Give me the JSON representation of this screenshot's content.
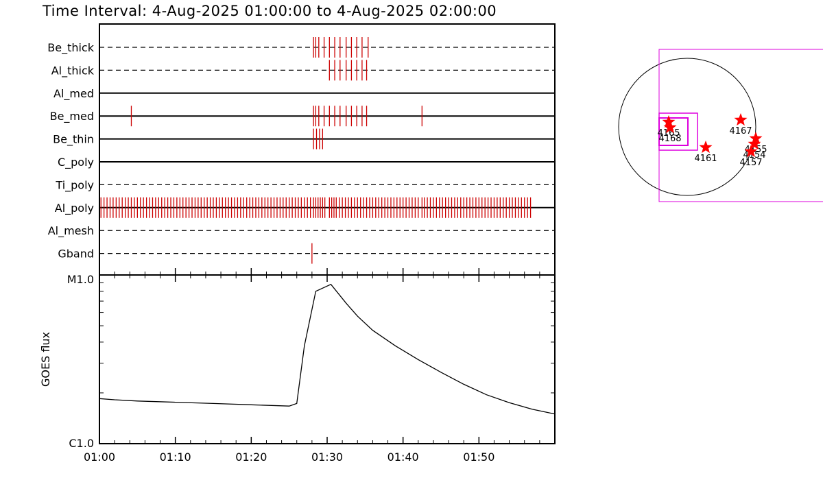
{
  "title": "Time Interval:  4-Aug-2025 01:00:00 to  4-Aug-2025 02:00:00",
  "colors": {
    "event": "#cc0000",
    "box": "#dd00dd",
    "star": "#ff0000",
    "line": "#000000"
  },
  "chart_data": [
    {
      "type": "timeline",
      "x_range_minutes": [
        0,
        60
      ],
      "filters": [
        {
          "name": "Be_thick",
          "line_style": "dashed",
          "events": [
            28.2,
            28.5,
            28.9,
            29.6,
            30.3,
            31.0,
            31.7,
            32.5,
            33.2,
            33.9,
            34.6,
            35.4
          ]
        },
        {
          "name": "Al_thick",
          "line_style": "dashed",
          "events": [
            30.3,
            31.0,
            31.7,
            32.5,
            33.2,
            33.9,
            34.6,
            35.2
          ]
        },
        {
          "name": "Al_med",
          "line_style": "solid",
          "events": []
        },
        {
          "name": "Be_med",
          "line_style": "solid",
          "events": [
            4.2,
            28.2,
            28.5,
            28.9,
            29.6,
            30.3,
            31.0,
            31.7,
            32.5,
            33.2,
            33.9,
            34.6,
            35.2,
            42.5
          ]
        },
        {
          "name": "Be_thin",
          "line_style": "solid",
          "events": [
            28.2,
            28.6,
            29.0,
            29.4
          ]
        },
        {
          "name": "C_poly",
          "line_style": "solid",
          "events": []
        },
        {
          "name": "Ti_poly",
          "line_style": "dashed",
          "events": []
        },
        {
          "name": "Al_poly",
          "line_style": "solid",
          "events": [
            0.2,
            0.6,
            1.0,
            1.4,
            1.8,
            2.2,
            2.6,
            3.0,
            3.4,
            3.8,
            4.2,
            4.6,
            5.0,
            5.4,
            5.8,
            6.2,
            6.6,
            7.0,
            7.4,
            7.8,
            8.2,
            8.6,
            9.0,
            9.4,
            9.8,
            10.2,
            10.6,
            11.0,
            11.4,
            11.8,
            12.2,
            12.6,
            13.0,
            13.4,
            13.8,
            14.2,
            14.6,
            15.0,
            15.4,
            15.8,
            16.2,
            16.6,
            17.0,
            17.4,
            17.8,
            18.2,
            18.6,
            19.0,
            19.4,
            19.8,
            20.2,
            20.6,
            21.0,
            21.4,
            21.8,
            22.2,
            22.6,
            23.0,
            23.4,
            23.8,
            24.2,
            24.6,
            25.0,
            25.4,
            25.8,
            26.2,
            26.6,
            27.0,
            27.4,
            27.8,
            28.2,
            28.5,
            28.8,
            29.1,
            29.4,
            29.7,
            30.3,
            30.6,
            30.9,
            31.2,
            31.6,
            32.0,
            32.4,
            32.8,
            33.2,
            33.6,
            34.0,
            34.4,
            34.8,
            35.2,
            35.6,
            36.0,
            36.4,
            36.8,
            37.2,
            37.6,
            38.0,
            38.4,
            38.8,
            39.2,
            39.6,
            40.0,
            40.4,
            40.8,
            41.2,
            41.6,
            42.0,
            42.5,
            42.8,
            43.2,
            43.6,
            44.0,
            44.4,
            44.8,
            45.2,
            45.6,
            46.0,
            46.4,
            46.8,
            47.2,
            47.6,
            48.0,
            48.4,
            48.8,
            49.2,
            49.6,
            50.0,
            50.4,
            50.8,
            51.2,
            51.6,
            52.0,
            52.4,
            52.8,
            53.2,
            53.6,
            54.0,
            54.4,
            54.8,
            55.2,
            55.6,
            56.0,
            56.4,
            56.8
          ]
        },
        {
          "name": "Al_mesh",
          "line_style": "dashed",
          "events": []
        },
        {
          "name": "Gband",
          "line_style": "dashed",
          "events": [
            28.0
          ]
        }
      ]
    },
    {
      "type": "line",
      "ylabel": "GOES flux",
      "y_scale": "log",
      "ylim": [
        1e-06,
        1e-05
      ],
      "y_tick_labels": [
        "C1.0",
        "M1.0"
      ],
      "x_tick_labels": [
        "01:00",
        "01:10",
        "01:20",
        "01:30",
        "01:40",
        "01:50"
      ],
      "x_tick_minutes": [
        0,
        10,
        20,
        30,
        40,
        50
      ],
      "series": [
        {
          "x": [
            0,
            2,
            5,
            10,
            15,
            20,
            25,
            26,
            27,
            28.5,
            30.5,
            32.5,
            34,
            36,
            39,
            42,
            45,
            48,
            51,
            54,
            57,
            60
          ],
          "y": [
            1.85e-06,
            1.82e-06,
            1.79e-06,
            1.76e-06,
            1.73e-06,
            1.7e-06,
            1.67e-06,
            1.73e-06,
            3.8e-06,
            8e-06,
            8.8e-06,
            6.8e-06,
            5.7e-06,
            4.7e-06,
            3.8e-06,
            3.15e-06,
            2.65e-06,
            2.25e-06,
            1.95e-06,
            1.75e-06,
            1.6e-06,
            1.5e-06
          ]
        }
      ]
    },
    {
      "type": "scatter",
      "description_units": "solar disk, radius 1",
      "regions": [
        {
          "label": "4165",
          "x": -0.27,
          "y": 0.07
        },
        {
          "label": "4168",
          "x": -0.25,
          "y": -0.01
        },
        {
          "label": "4161",
          "x": 0.27,
          "y": -0.3
        },
        {
          "label": "4167",
          "x": 0.78,
          "y": 0.1
        },
        {
          "label": "4155",
          "x": 1.0,
          "y": -0.17
        },
        {
          "label": "4154",
          "x": 0.98,
          "y": -0.25
        },
        {
          "label": "4157",
          "x": 0.93,
          "y": -0.36
        }
      ]
    }
  ]
}
